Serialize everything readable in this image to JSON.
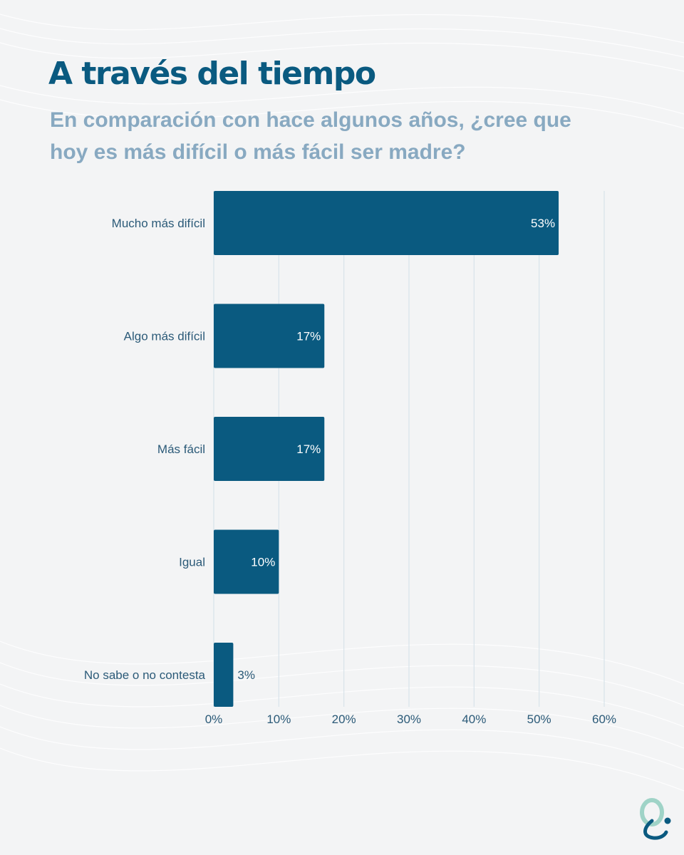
{
  "header": {
    "title": "A través del tiempo",
    "subtitle": "En comparación con hace algunos años, ¿cree que hoy es más difícil o más fácil ser madre?"
  },
  "colors": {
    "bar": "#0a5a80",
    "title": "#0a5a80",
    "subtitle": "#88a9c1",
    "label": "#2b5a78",
    "grid": "#d8e3ea"
  },
  "brand": {
    "logo_icon": "brand-q-logo-icon"
  },
  "chart_data": {
    "type": "bar",
    "orientation": "horizontal",
    "categories": [
      "Mucho más difícil",
      "Algo más difícil",
      "Más fácil",
      "Igual",
      "No sabe o no contesta"
    ],
    "values": [
      53,
      17,
      17,
      10,
      3
    ],
    "value_labels": [
      "53%",
      "17%",
      "17%",
      "10%",
      "3%"
    ],
    "xlim": [
      0,
      60
    ],
    "xticks": [
      0,
      10,
      20,
      30,
      40,
      50,
      60
    ],
    "xtick_labels": [
      "0%",
      "10%",
      "20%",
      "30%",
      "40%",
      "50%",
      "60%"
    ],
    "grid": true,
    "legend": "none"
  }
}
